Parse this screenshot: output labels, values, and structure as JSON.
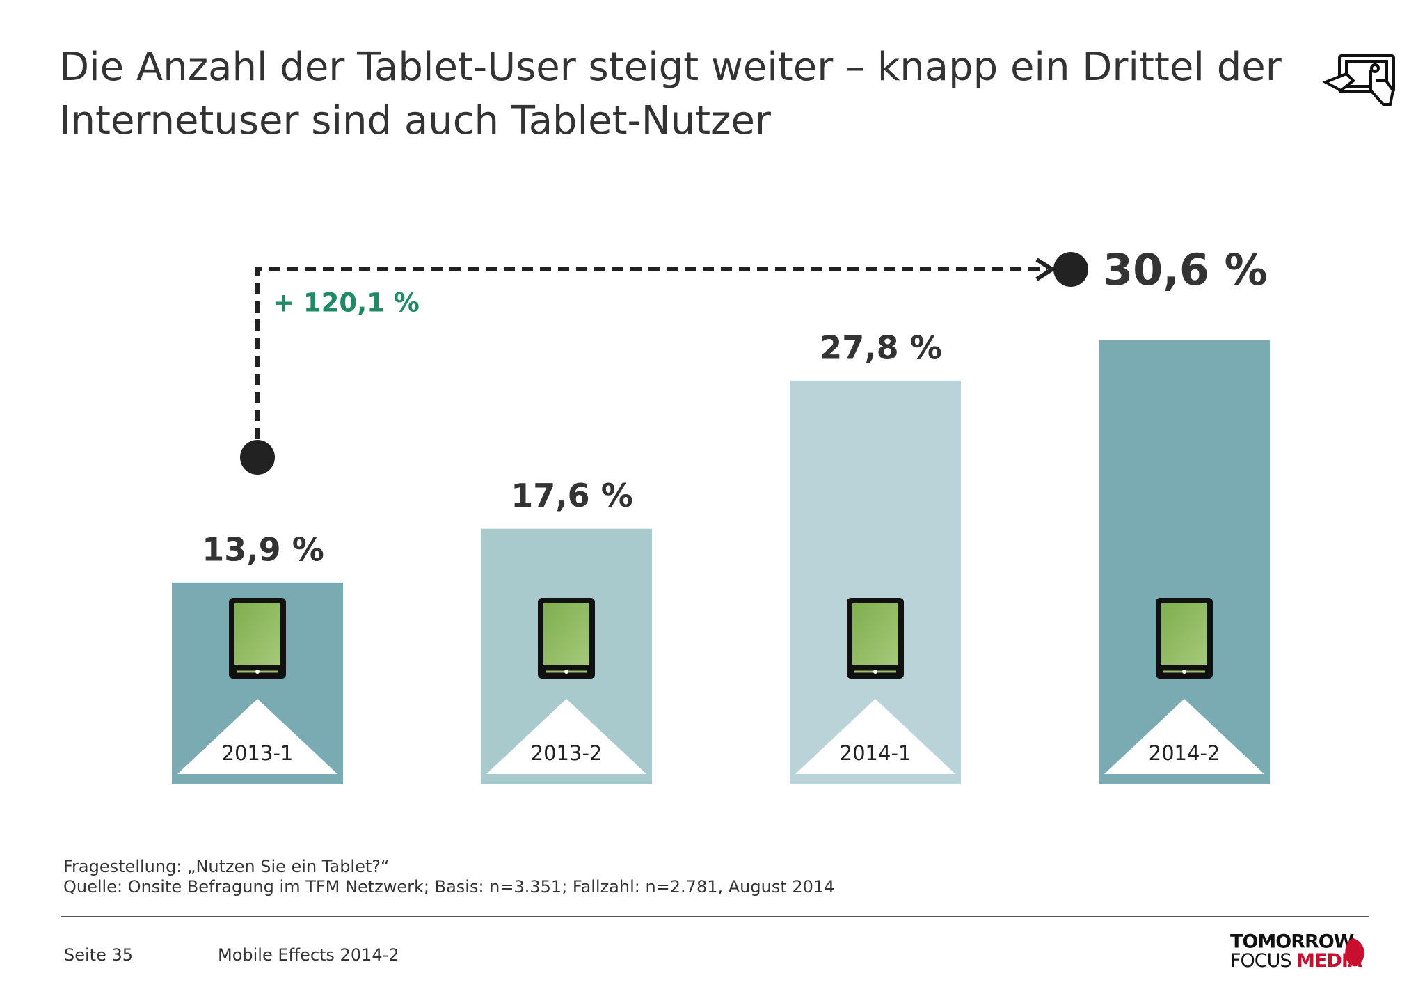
{
  "chart_data": {
    "type": "bar",
    "title": "Die Anzahl der Tablet-User steigt weiter – knapp ein Drittel der Internetuser sind auch Tablet-Nutzer",
    "categories": [
      "2013-1",
      "2013-2",
      "2014-1",
      "2014-2"
    ],
    "values": [
      13.9,
      17.6,
      27.8,
      30.6
    ],
    "value_labels": [
      "13,9 %",
      "17,6 %",
      "27,8 %",
      "30,6 %"
    ],
    "colors": [
      "#7aabb3",
      "#a9cacd",
      "#bad3d8",
      "#7aabb3"
    ],
    "annotation": "+ 120,1 %"
  },
  "footnotes": [
    "Fragestellung: „Nutzen Sie ein Tablet?“",
    "Quelle: Onsite Befragung im TFM Netzwerk; Basis: n=3.351; Fallzahl: n=2.781, August 2014"
  ],
  "footer": {
    "page": "Seite 35",
    "report": "Mobile Effects 2014-2"
  },
  "logo": {
    "line1": "TOMORROW",
    "line2a": "FOCUS",
    "line2b": "MEDIA"
  }
}
